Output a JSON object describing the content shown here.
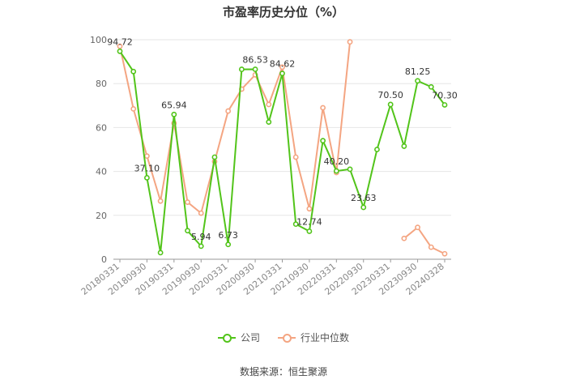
{
  "chart_data": {
    "type": "line",
    "title": "市盈率历史分位（%）",
    "xlabel": "",
    "ylabel": "",
    "ylim": [
      0,
      100
    ],
    "yticks": [
      0,
      20,
      40,
      60,
      80,
      100
    ],
    "grid": true,
    "legend_position": "bottom",
    "source_text": "数据来源：恒生聚源",
    "x": [
      "20180331",
      "20180630",
      "20180930",
      "20181231",
      "20190331",
      "20190630",
      "20190930",
      "20191231",
      "20200331",
      "20200630",
      "20200930",
      "20201231",
      "20210331",
      "20210630",
      "20210930",
      "20211231",
      "20220331",
      "20220630",
      "20220930",
      "20221231",
      "20230331",
      "20230630",
      "20230930",
      "20231231",
      "20240328"
    ],
    "xticks_shown": [
      "20180331",
      "20180930",
      "20190331",
      "20190930",
      "20200331",
      "20200930",
      "20210331",
      "20210930",
      "20220331",
      "20220930",
      "20230331",
      "20230930",
      "20240328"
    ],
    "series": [
      {
        "name": "公司",
        "color": "#52c41a",
        "values": [
          94.72,
          85.5,
          37.1,
          3.0,
          65.94,
          13.0,
          5.94,
          46.5,
          6.73,
          86.5,
          86.53,
          62.5,
          84.62,
          16.0,
          12.74,
          54.0,
          40.2,
          41.0,
          23.63,
          50.0,
          70.5,
          51.5,
          81.25,
          78.5,
          70.3
        ],
        "labels": {
          "0": "94.72",
          "2": "37.10",
          "4": "65.94",
          "6": "5.94",
          "8": "6.73",
          "10": "86.53",
          "12": "84.62",
          "14": "12.74",
          "16": "40.20",
          "18": "23.63",
          "20": "70.50",
          "22": "81.25",
          "24": "70.30"
        }
      },
      {
        "name": "行业中位数",
        "color": "#f4a582",
        "values": [
          97.0,
          68.5,
          47.0,
          26.5,
          62.0,
          26.0,
          21.0,
          44.5,
          67.5,
          77.5,
          84.0,
          70.5,
          87.5,
          46.5,
          23.0,
          69.0,
          39.5,
          99.0,
          null,
          null,
          null,
          9.5,
          14.5,
          5.5,
          2.5
        ],
        "labels": {}
      }
    ]
  }
}
